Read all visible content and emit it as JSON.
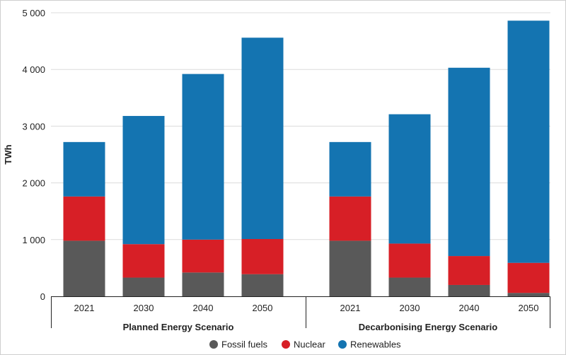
{
  "chart_data": {
    "type": "bar",
    "stacked": true,
    "ylabel": "TWh",
    "ylim": [
      0,
      5000
    ],
    "yticks": [
      "0",
      "1 000",
      "2 000",
      "3 000",
      "4 000",
      "5 000"
    ],
    "ytick_values": [
      0,
      1000,
      2000,
      3000,
      4000,
      5000
    ],
    "groups": [
      {
        "label": "Planned Energy Scenario",
        "categories": [
          "2021",
          "2030",
          "2040",
          "2050"
        ],
        "series": [
          {
            "name": "Fossil fuels",
            "values": [
              980,
              330,
              420,
              390
            ]
          },
          {
            "name": "Nuclear",
            "values": [
              780,
              590,
              580,
              620
            ]
          },
          {
            "name": "Renewables",
            "values": [
              960,
              2260,
              2920,
              3550
            ]
          }
        ]
      },
      {
        "label": "Decarbonising Energy Scenario",
        "categories": [
          "2021",
          "2030",
          "2040",
          "2050"
        ],
        "series": [
          {
            "name": "Fossil fuels",
            "values": [
              980,
              330,
              200,
              60
            ]
          },
          {
            "name": "Nuclear",
            "values": [
              780,
              600,
              510,
              530
            ]
          },
          {
            "name": "Renewables",
            "values": [
              960,
              2280,
              3320,
              4270
            ]
          }
        ]
      }
    ],
    "legend": [
      {
        "name": "Fossil fuels",
        "color": "#595959"
      },
      {
        "name": "Nuclear",
        "color": "#d71f26"
      },
      {
        "name": "Renewables",
        "color": "#1474b1"
      }
    ],
    "grid": true
  }
}
